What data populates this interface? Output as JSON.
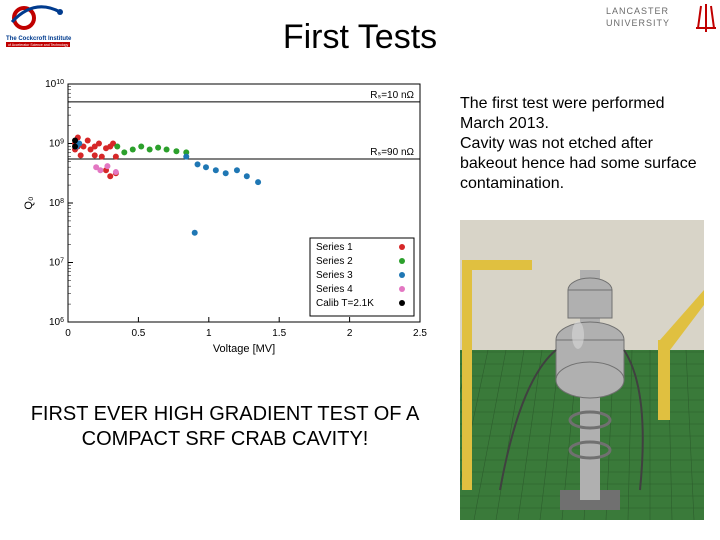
{
  "title": "First Tests",
  "logos": {
    "left_name": "cockcroft-institute-logo",
    "left_colors": {
      "ring": "#c00000",
      "arc": "#003b8e",
      "text": "#003b8e",
      "subtext_bg": "#c00000"
    },
    "right_name": "lancaster-university-logo",
    "right_colors": {
      "text": "#6b6b6b",
      "mark": "#c00000"
    }
  },
  "description": {
    "line1": "The first test were performed March 2013.",
    "line2": "Cavity was not etched after bakeout hence had some surface contamination."
  },
  "caption": "FIRST EVER HIGH GRADIENT TEST OF A COMPACT SRF CRAB CAVITY!",
  "chart": {
    "type": "scatter",
    "xlabel": "Voltage [MV]",
    "ylabel": "Q₀",
    "label_fontsize": 11,
    "tick_fontsize": 10,
    "xlim": [
      0,
      2.5
    ],
    "xtick_step": 0.5,
    "xticks": [
      0,
      0.5,
      1,
      1.5,
      2,
      2.5
    ],
    "yscale": "log",
    "ylim_exp": [
      6,
      10
    ],
    "yticks_exp": [
      6,
      7,
      8,
      9,
      10
    ],
    "background_color": "#ffffff",
    "axis_color": "#000000",
    "reference_lines": [
      {
        "rs": "10 nΩ",
        "q_exp": 9.7,
        "color": "#000000"
      },
      {
        "rs": "90 nΩ",
        "q_exp": 8.74,
        "color": "#000000"
      }
    ],
    "annotation_labels": {
      "r1": "Rₛ=10 nΩ",
      "r2": "Rₛ=90 nΩ"
    },
    "marker_size": 3,
    "series": [
      {
        "name": "Series 1",
        "color": "#d62728",
        "marker": "circle",
        "points": [
          [
            0.05,
            9.0
          ],
          [
            0.05,
            8.9
          ],
          [
            0.07,
            8.95
          ],
          [
            0.07,
            9.1
          ],
          [
            0.09,
            8.8
          ],
          [
            0.11,
            8.95
          ],
          [
            0.14,
            9.05
          ],
          [
            0.16,
            8.9
          ],
          [
            0.19,
            8.8
          ],
          [
            0.19,
            8.95
          ],
          [
            0.22,
            9.0
          ],
          [
            0.24,
            8.78
          ],
          [
            0.27,
            8.92
          ],
          [
            0.27,
            8.55
          ],
          [
            0.3,
            8.95
          ],
          [
            0.3,
            8.45
          ],
          [
            0.32,
            9.0
          ],
          [
            0.34,
            8.78
          ],
          [
            0.34,
            8.5
          ]
        ]
      },
      {
        "name": "Series 2",
        "color": "#2ca02c",
        "marker": "circle",
        "points": [
          [
            0.35,
            8.95
          ],
          [
            0.4,
            8.85
          ],
          [
            0.46,
            8.9
          ],
          [
            0.52,
            8.95
          ],
          [
            0.58,
            8.9
          ],
          [
            0.64,
            8.93
          ],
          [
            0.7,
            8.9
          ],
          [
            0.77,
            8.87
          ],
          [
            0.84,
            8.85
          ]
        ]
      },
      {
        "name": "Series 3",
        "color": "#1f77b4",
        "marker": "circle",
        "points": [
          [
            0.06,
            8.95
          ],
          [
            0.08,
            9.0
          ],
          [
            0.84,
            8.78
          ],
          [
            0.92,
            8.65
          ],
          [
            0.98,
            8.6
          ],
          [
            1.05,
            8.55
          ],
          [
            1.12,
            8.5
          ],
          [
            1.2,
            8.55
          ],
          [
            1.27,
            8.45
          ],
          [
            1.35,
            8.35
          ],
          [
            0.9,
            7.5
          ]
        ]
      },
      {
        "name": "Series 4",
        "color": "#e377c2",
        "marker": "circle",
        "points": [
          [
            0.2,
            8.6
          ],
          [
            0.23,
            8.55
          ],
          [
            0.28,
            8.62
          ],
          [
            0.34,
            8.52
          ]
        ]
      },
      {
        "name": "Calib T=2.1K",
        "color": "#000000",
        "marker": "circle",
        "points": [
          [
            0.05,
            9.05
          ],
          [
            0.05,
            8.95
          ]
        ]
      }
    ],
    "legend": {
      "position": "lower-right",
      "border_color": "#000000",
      "bg": "#ffffff",
      "fontsize": 10
    }
  },
  "photo": {
    "description": "cavity-test-stand-photo",
    "colors": {
      "floor": "#3a7a3a",
      "floor_dark": "#2d5e2d",
      "wall": "#d8d4c8",
      "frame": "#e0c040",
      "apparatus": "#b0b0b0",
      "apparatus_dark": "#707070",
      "cable": "#404040"
    }
  }
}
